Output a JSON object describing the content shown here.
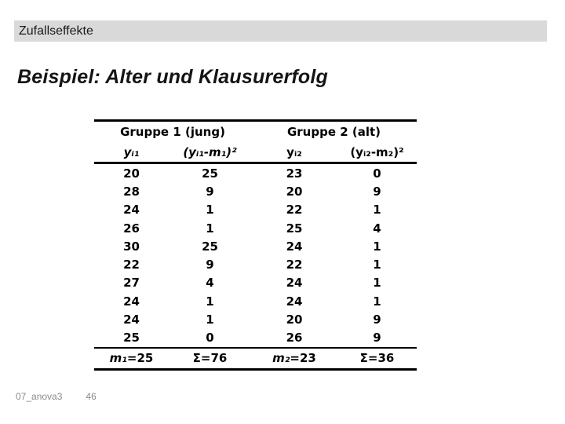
{
  "slide": {
    "header": "Zufallseffekte",
    "title": "Beispiel: Alter und Klausurerfolg",
    "footer": {
      "filename": "07_anova3",
      "page_number": "46"
    }
  },
  "table": {
    "group_headers": [
      "Gruppe 1 (jung)",
      "Gruppe 2 (alt)"
    ],
    "col_headers": [
      "yᵢ₁",
      "(yᵢ₁-m₁)²",
      "yᵢ₂",
      "(yᵢ₂-m₂)²"
    ],
    "rows": [
      [
        20,
        25,
        23,
        0
      ],
      [
        28,
        9,
        20,
        9
      ],
      [
        24,
        1,
        22,
        1
      ],
      [
        26,
        1,
        25,
        4
      ],
      [
        30,
        25,
        24,
        1
      ],
      [
        22,
        9,
        22,
        1
      ],
      [
        27,
        4,
        24,
        1
      ],
      [
        24,
        1,
        24,
        1
      ],
      [
        24,
        1,
        20,
        9
      ],
      [
        25,
        0,
        26,
        9
      ]
    ],
    "summary": [
      {
        "label": "m₁",
        "rest": "=25"
      },
      {
        "label": "Σ",
        "rest": "=76"
      },
      {
        "label": "m₂",
        "rest": "=23"
      },
      {
        "label": "Σ",
        "rest": "=36"
      }
    ]
  },
  "colors": {
    "header_bar_bg": "#d9d9d9",
    "title_text": "#141414",
    "table_text": "#000000",
    "rule": "#000000",
    "footer_text": "#8a8a8a"
  }
}
